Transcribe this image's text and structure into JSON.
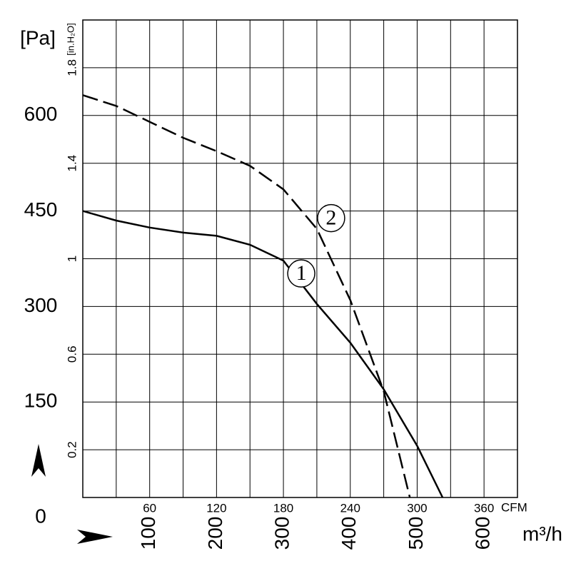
{
  "chart_data": {
    "type": "line",
    "ylabel": "[Pa]",
    "y2label": "[in.H₂O]",
    "xlabel": "m³/h",
    "x2label": "CFM",
    "xlim": [
      0,
      650
    ],
    "xticks": [
      100,
      200,
      300,
      400,
      500,
      600
    ],
    "x2lim": [
      0,
      390
    ],
    "x2ticks": [
      60,
      120,
      180,
      240,
      300,
      360
    ],
    "ylim": [
      0,
      750
    ],
    "yticks": [
      0,
      150,
      300,
      450,
      600
    ],
    "y2lim": [
      0,
      2.0
    ],
    "y2ticks": [
      0.2,
      0.6,
      1.0,
      1.4,
      1.8
    ],
    "grid": true,
    "series": [
      {
        "name": "1",
        "color": "#000000",
        "dash": false,
        "x": [
          0,
          50,
          100,
          150,
          200,
          250,
          300,
          350,
          400,
          450,
          500,
          538
        ],
        "values": [
          450,
          435,
          424,
          416,
          411,
          397,
          372,
          304,
          243,
          170,
          81,
          0
        ]
      },
      {
        "name": "2",
        "color": "#000000",
        "dash": true,
        "x": [
          0,
          50,
          100,
          150,
          200,
          250,
          300,
          350,
          400,
          450,
          489
        ],
        "values": [
          632,
          615,
          590,
          565,
          544,
          521,
          484,
          422,
          310,
          167,
          0
        ]
      }
    ]
  }
}
